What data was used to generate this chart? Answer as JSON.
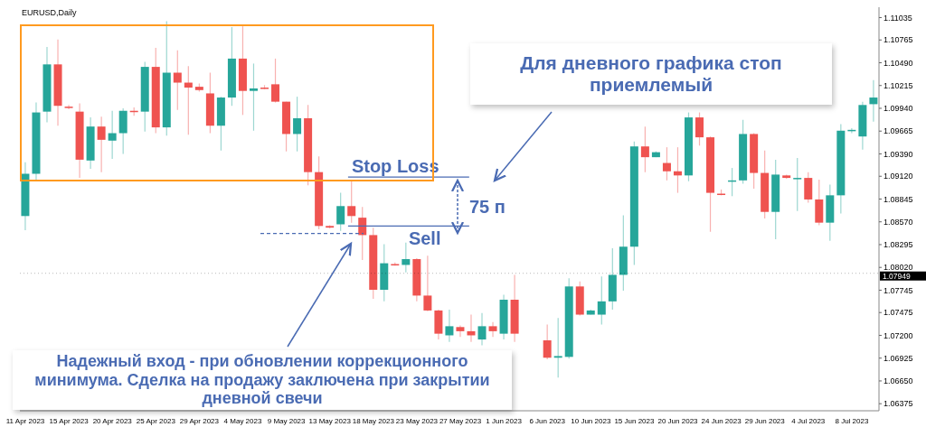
{
  "chart_data": {
    "type": "candlestick",
    "annotations": [
      "EURUSD,Daily",
      "Для дневного графика стоп приемлемый",
      "75 п",
      "Надежный вход - при обновлении коррекционного минимума. Сделка на продажу заключена при закрытии дневной свечи"
    ],
    "categories": [
      "11 Apr 2023",
      null,
      null,
      null,
      "15 Apr 2023",
      null,
      null,
      null,
      "20 Apr 2023",
      null,
      null,
      null,
      "25 Apr 2023",
      null,
      null,
      null,
      "29 Apr 2023",
      null,
      null,
      null,
      "4 May 2023",
      null,
      null,
      null,
      "9 May 2023",
      null,
      null,
      null,
      "13 May 2023",
      null,
      null,
      null,
      "18 May 2023",
      null,
      null,
      null,
      "23 May 2023",
      null,
      null,
      null,
      "27 May 2023",
      null,
      null,
      null,
      "1 Jun 2023",
      null,
      null,
      null,
      "6 Jun 2023",
      null,
      null,
      null,
      "10 Jun 2023",
      null,
      null,
      null,
      "15 Jun 2023",
      null,
      null,
      null,
      "20 Jun 2023",
      null,
      null,
      null,
      "24 Jun 2023",
      null,
      null,
      null,
      "29 Jun 2023",
      null,
      null,
      null,
      "4 Jul 2023",
      null,
      null,
      null,
      "8 Jul 2023",
      null,
      null
    ],
    "ohlc": [
      [
        1.0864,
        1.0929,
        1.0847,
        1.0915
      ],
      [
        1.0915,
        1.1001,
        1.0907,
        1.0989
      ],
      [
        1.099,
        1.1068,
        1.0977,
        1.1047
      ],
      [
        1.1047,
        1.1077,
        1.0973,
        1.0997
      ],
      [
        1.0996,
        1.0998,
        1.0993,
        1.0995
      ],
      [
        1.099,
        1.1,
        1.091,
        1.0932
      ],
      [
        1.0931,
        1.0983,
        1.0921,
        1.0972
      ],
      [
        1.0972,
        1.0984,
        1.0917,
        1.0956
      ],
      [
        1.0955,
        1.0991,
        1.0933,
        1.0964
      ],
      [
        1.0964,
        1.0994,
        1.0939,
        1.0991
      ],
      [
        1.0991,
        1.0995,
        1.0985,
        1.099
      ],
      [
        1.099,
        1.105,
        1.0966,
        1.1044
      ],
      [
        1.1044,
        1.1067,
        1.0964,
        1.0971
      ],
      [
        1.0971,
        1.1099,
        1.0961,
        1.1037
      ],
      [
        1.1037,
        1.1064,
        1.0992,
        1.1025
      ],
      [
        1.1025,
        1.1045,
        1.0962,
        1.1019
      ],
      [
        1.102,
        1.1024,
        1.1014,
        1.1016
      ],
      [
        1.1012,
        1.1037,
        1.0964,
        1.0973
      ],
      [
        1.0973,
        1.1008,
        1.0943,
        1.1007
      ],
      [
        1.1007,
        1.1092,
        1.0997,
        1.1054
      ],
      [
        1.1054,
        1.1093,
        1.0986,
        1.1015
      ],
      [
        1.1015,
        1.1048,
        1.0967,
        1.1018
      ],
      [
        1.1019,
        1.1022,
        1.1017,
        1.1018
      ],
      [
        1.1023,
        1.1054,
        1.1001,
        1.1002
      ],
      [
        1.1002,
        1.1002,
        1.0942,
        1.0963
      ],
      [
        1.0963,
        1.1008,
        1.0942,
        1.0982
      ],
      [
        1.0982,
        1.0998,
        1.0901,
        1.0917
      ],
      [
        1.0917,
        1.0936,
        1.0848,
        1.0852
      ],
      [
        1.0852,
        1.0853,
        1.0849,
        1.085
      ],
      [
        1.0854,
        1.0892,
        1.0846,
        1.0876
      ],
      [
        1.0876,
        1.0906,
        1.0856,
        1.0864
      ],
      [
        1.0862,
        1.0875,
        1.0811,
        1.0841
      ],
      [
        1.0841,
        1.085,
        1.0764,
        1.0775
      ],
      [
        1.0775,
        1.083,
        1.0761,
        1.0807
      ],
      [
        1.0806,
        1.0808,
        1.0804,
        1.0805
      ],
      [
        1.0805,
        1.0832,
        1.0796,
        1.0812
      ],
      [
        1.0812,
        1.0813,
        1.0761,
        1.0768
      ],
      [
        1.0768,
        1.0816,
        1.0749,
        1.075
      ],
      [
        1.075,
        1.0751,
        1.0715,
        1.0722
      ],
      [
        1.072,
        1.0751,
        1.0712,
        1.0731
      ],
      [
        1.073,
        1.0732,
        1.0718,
        1.0725
      ],
      [
        1.0725,
        1.0745,
        1.0712,
        1.072
      ],
      [
        1.0715,
        1.0747,
        1.0708,
        1.0731
      ],
      [
        1.0731,
        1.0736,
        1.0718,
        1.0725
      ],
      [
        1.0722,
        1.0769,
        1.0715,
        1.0763
      ],
      [
        1.0763,
        1.0793,
        1.0712,
        1.0722
      ],
      null,
      null,
      [
        1.0714,
        1.0733,
        1.0691,
        1.0693
      ],
      [
        1.0693,
        1.0741,
        1.0669,
        1.0695
      ],
      [
        1.0694,
        1.0789,
        1.0692,
        1.0779
      ],
      [
        1.0779,
        1.0785,
        1.0744,
        1.0745
      ],
      [
        1.0745,
        1.0751,
        1.0745,
        1.075
      ],
      [
        1.0745,
        1.0791,
        1.0733,
        1.0761
      ],
      [
        1.0761,
        1.0825,
        1.0751,
        1.0793
      ],
      [
        1.0793,
        1.0865,
        1.0774,
        1.0827
      ],
      [
        1.0827,
        1.0954,
        1.0805,
        1.0948
      ],
      [
        1.0948,
        1.0972,
        1.0917,
        1.0935
      ],
      [
        1.0935,
        1.0942,
        1.0935,
        1.0941
      ],
      [
        1.0928,
        1.0947,
        1.0907,
        1.0918
      ],
      [
        1.0918,
        1.0947,
        1.0892,
        1.0913
      ],
      [
        1.0913,
        1.0989,
        1.0906,
        1.0983
      ],
      [
        1.0983,
        1.0989,
        1.0949,
        1.0959
      ],
      [
        1.0959,
        1.096,
        1.0845,
        1.0892
      ],
      [
        1.0891,
        1.0896,
        1.0889,
        1.089
      ],
      [
        1.0906,
        1.0922,
        1.0888,
        1.0907
      ],
      [
        1.0907,
        1.098,
        1.0903,
        1.0963
      ],
      [
        1.0963,
        1.0964,
        1.0897,
        1.0916
      ],
      [
        1.0916,
        1.0943,
        1.0861,
        1.0869
      ],
      [
        1.0869,
        1.0932,
        1.0836,
        1.0914
      ],
      [
        1.0913,
        1.0914,
        1.0909,
        1.091
      ],
      [
        1.0909,
        1.0934,
        1.087,
        1.091
      ],
      [
        1.091,
        1.0917,
        1.088,
        1.0884
      ],
      [
        1.0884,
        1.0908,
        1.0853,
        1.0856
      ],
      [
        1.0856,
        1.0902,
        1.0834,
        1.0889
      ],
      [
        1.0889,
        1.0975,
        1.0867,
        1.0967
      ],
      [
        1.0967,
        1.097,
        1.0964,
        1.0968
      ],
      [
        1.096,
        1.1002,
        1.0944,
        1.0998
      ],
      [
        1.0999,
        1.1028,
        1.0978,
        1.1007
      ]
    ],
    "colors": [
      "#26a69a",
      "#26a69a",
      "#26a69a",
      "#ef5350",
      "#ef5350",
      "#ef5350",
      "#26a69a",
      "#ef5350",
      "#26a69a",
      "#26a69a",
      "#ef5350",
      "#26a69a",
      "#ef5350",
      "#26a69a",
      "#ef5350",
      "#ef5350",
      "#ef5350",
      "#ef5350",
      "#26a69a",
      "#26a69a",
      "#ef5350",
      "#26a69a",
      "#ef5350",
      "#ef5350",
      "#ef5350",
      "#26a69a",
      "#ef5350",
      "#ef5350",
      "#ef5350",
      "#26a69a",
      "#ef5350",
      "#ef5350",
      "#ef5350",
      "#26a69a",
      "#ef5350",
      "#26a69a",
      "#ef5350",
      "#ef5350",
      "#ef5350",
      "#26a69a",
      "#ef5350",
      "#ef5350",
      "#26a69a",
      "#ef5350",
      "#26a69a",
      "#ef5350",
      null,
      null,
      "#ef5350",
      "#26a69a",
      "#26a69a",
      "#ef5350",
      "#26a69a",
      "#26a69a",
      "#26a69a",
      "#26a69a",
      "#26a69a",
      "#ef5350",
      "#26a69a",
      "#ef5350",
      "#ef5350",
      "#26a69a",
      "#ef5350",
      "#ef5350",
      "#ef5350",
      "#26a69a",
      "#26a69a",
      "#ef5350",
      "#ef5350",
      "#26a69a",
      "#ef5350",
      "#26a69a",
      "#ef5350",
      "#ef5350",
      "#26a69a",
      "#26a69a",
      "#26a69a",
      "#26a69a",
      "#26a69a"
    ],
    "ylim": [
      1.0629,
      1.1116
    ],
    "yticks": [
      {
        "value": 1.11035,
        "label": "1.11035"
      },
      {
        "value": 1.10765,
        "label": "1.10765"
      },
      {
        "value": 1.1049,
        "label": "1.10490"
      },
      {
        "value": 1.10215,
        "label": "1.10215"
      },
      {
        "value": 1.0994,
        "label": "1.09940"
      },
      {
        "value": 1.09665,
        "label": "1.09665"
      },
      {
        "value": 1.0939,
        "label": "1.09390"
      },
      {
        "value": 1.0912,
        "label": "1.09120"
      },
      {
        "value": 1.08845,
        "label": "1.08845"
      },
      {
        "value": 1.0857,
        "label": "1.08570"
      },
      {
        "value": 1.08295,
        "label": "1.08295"
      },
      {
        "value": 1.0802,
        "label": "1.08020"
      },
      {
        "value": 1.07745,
        "label": "1.07745"
      },
      {
        "value": 1.07475,
        "label": "1.07475"
      },
      {
        "value": 1.072,
        "label": "1.07200"
      },
      {
        "value": 1.06925,
        "label": "1.06925"
      },
      {
        "value": 1.0665,
        "label": "1.06650"
      },
      {
        "value": 1.06375,
        "label": "1.06375"
      }
    ],
    "ref_lines": [
      {
        "axis": "y",
        "value": 1.0911,
        "label": "Stop Loss",
        "color": "#4a6bb3"
      },
      {
        "axis": "y",
        "value": 1.0852,
        "label": "Sell",
        "color": "#4a6bb3"
      },
      {
        "axis": "y",
        "value": 1.0843,
        "color": "#4a6bb3",
        "line_style": "dashed"
      },
      {
        "axis": "y",
        "value": 1.07949,
        "label": "1.07949",
        "color": "#000000"
      }
    ]
  }
}
